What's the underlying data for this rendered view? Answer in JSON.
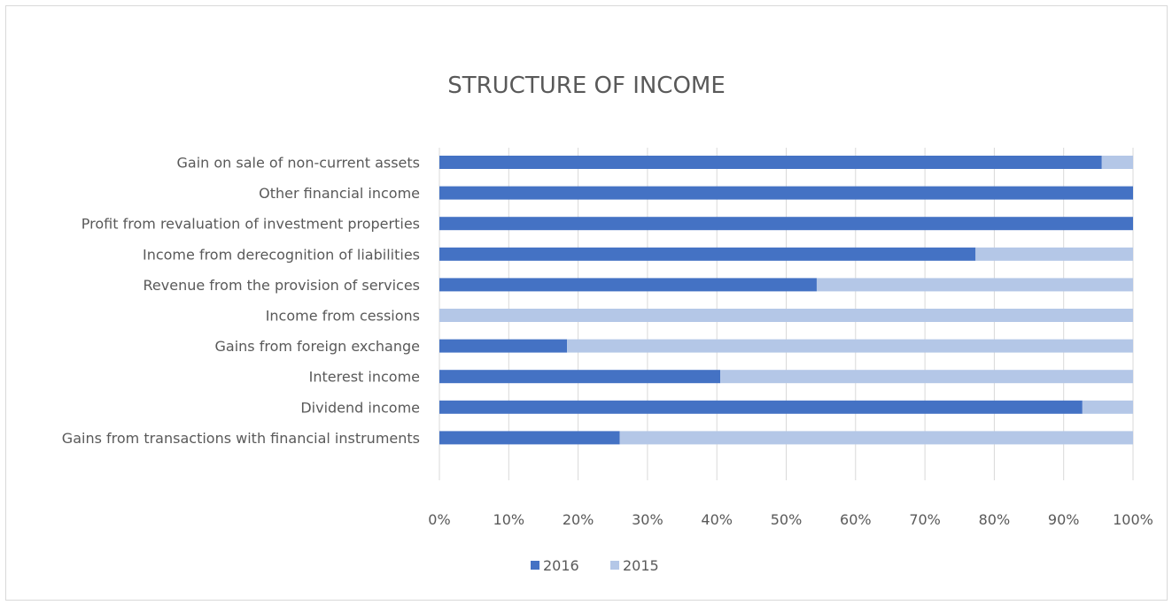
{
  "chart_data": {
    "type": "bar",
    "orientation": "horizontal",
    "stacked": "percent",
    "title": "STRUCTURE OF INCOME",
    "categories": [
      "Gain on sale of non-current assets",
      "Other financial income",
      "Profit from revaluation of investment properties",
      "Income from derecognition of liabilities",
      "Revenue from the provision of services",
      "Income from cessions",
      "Gains from foreign exchange",
      "Interest income",
      "Dividend income",
      "Gains from transactions with financial instruments"
    ],
    "series": [
      {
        "name": "2016",
        "color": "#4472c4",
        "values": [
          95.5,
          100,
          100,
          77.3,
          54.4,
          0,
          18.4,
          40.5,
          92.7,
          26.0
        ]
      },
      {
        "name": "2015",
        "color": "#b4c7e7",
        "values": [
          4.5,
          0,
          0,
          22.7,
          45.6,
          100,
          81.6,
          59.5,
          7.3,
          74.0
        ]
      }
    ],
    "xlim": [
      0,
      100
    ],
    "xticks": [
      "0%",
      "10%",
      "20%",
      "30%",
      "40%",
      "50%",
      "60%",
      "70%",
      "80%",
      "90%",
      "100%"
    ],
    "grid": true,
    "legend": "bottom"
  }
}
